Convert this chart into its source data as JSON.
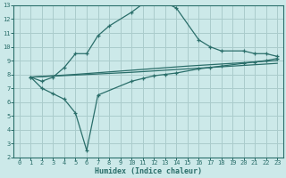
{
  "title": "",
  "xlabel": "Humidex (Indice chaleur)",
  "bg_color": "#cce9e9",
  "grid_color": "#aacccc",
  "line_color": "#2a6e6a",
  "xlim": [
    -0.5,
    23.5
  ],
  "ylim": [
    2,
    13
  ],
  "xticks": [
    0,
    1,
    2,
    3,
    4,
    5,
    6,
    7,
    8,
    9,
    10,
    11,
    12,
    13,
    14,
    15,
    16,
    17,
    18,
    19,
    20,
    21,
    22,
    23
  ],
  "yticks": [
    2,
    3,
    4,
    5,
    6,
    7,
    8,
    9,
    10,
    11,
    12,
    13
  ],
  "curve_upper_x": [
    1,
    2,
    3,
    4,
    5,
    6,
    7,
    8,
    10,
    11,
    12,
    13,
    14,
    16,
    17,
    18,
    20,
    21,
    22,
    23
  ],
  "curve_upper_y": [
    7.8,
    7.5,
    7.8,
    8.5,
    9.5,
    9.5,
    10.8,
    11.5,
    12.5,
    13.1,
    13.3,
    13.2,
    12.8,
    10.5,
    10.0,
    9.7,
    9.7,
    9.5,
    9.5,
    9.3
  ],
  "curve_lower_x": [
    1,
    2,
    3,
    4,
    5,
    6,
    7,
    10,
    11,
    12,
    13,
    14,
    16,
    17,
    18,
    20,
    21,
    22,
    23
  ],
  "curve_lower_y": [
    7.8,
    7.0,
    6.6,
    6.2,
    5.2,
    2.5,
    6.5,
    7.5,
    7.7,
    7.9,
    8.0,
    8.1,
    8.4,
    8.5,
    8.6,
    8.8,
    8.9,
    9.0,
    9.15
  ],
  "line1_x": [
    1,
    5,
    10,
    15,
    20,
    23
  ],
  "line1_y": [
    7.8,
    8.0,
    8.3,
    8.6,
    8.85,
    9.0
  ],
  "line2_x": [
    1,
    5,
    10,
    15,
    20,
    23
  ],
  "line2_y": [
    7.8,
    7.95,
    8.15,
    8.4,
    8.65,
    8.8
  ]
}
